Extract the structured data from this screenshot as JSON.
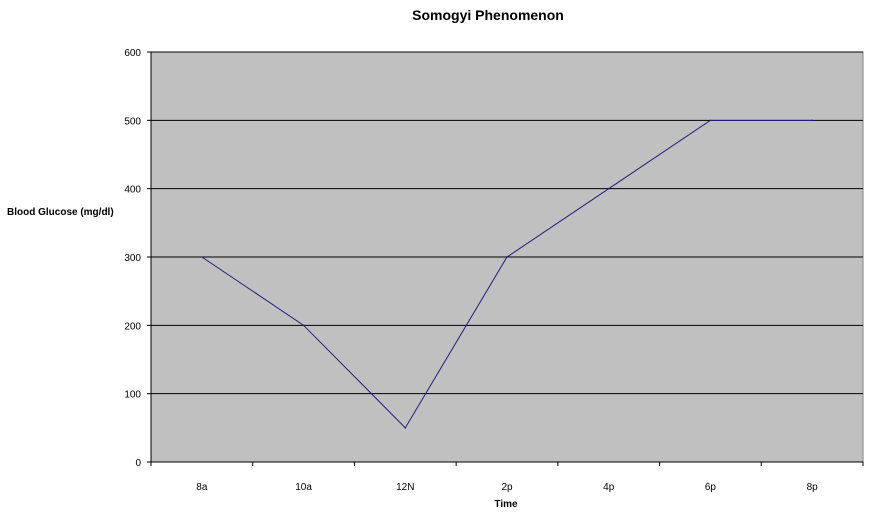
{
  "chart_data": {
    "type": "line",
    "title": "Somogyi Phenomenon",
    "xlabel": "Time",
    "ylabel": "Blood Glucose (mg/dl)",
    "categories": [
      "8a",
      "10a",
      "12N",
      "2p",
      "4p",
      "6p",
      "8p"
    ],
    "series": [
      {
        "values": [
          300,
          200,
          50,
          300,
          400,
          500,
          500
        ]
      }
    ],
    "ylim": [
      0,
      600
    ],
    "yticks": [
      0,
      100,
      200,
      300,
      400,
      500,
      600
    ],
    "grid": true,
    "legend": "none",
    "colors": {
      "plot_background": "#c0c0c0",
      "line": "#1f1f7a",
      "gridline": "#000000"
    }
  }
}
